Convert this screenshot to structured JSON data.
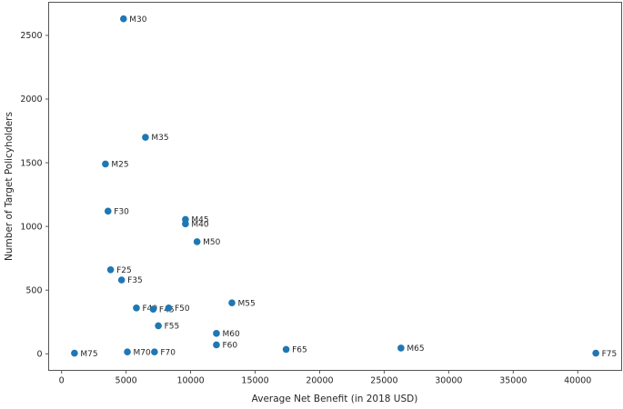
{
  "chart_data": {
    "type": "scatter",
    "title": "",
    "xlabel": "Average Net Benefit (in 2018 USD)",
    "ylabel": "Number of Target Policyholders",
    "xlim": [
      -1000,
      43400
    ],
    "ylim": [
      -130,
      2760
    ],
    "x_ticks": [
      0,
      5000,
      10000,
      15000,
      20000,
      25000,
      30000,
      35000,
      40000
    ],
    "y_ticks": [
      0,
      500,
      1000,
      1500,
      2000,
      2500
    ],
    "grid": false,
    "legend": null,
    "marker_color": "#1f77b4",
    "text_color": "#262626",
    "axis_color": "#555555",
    "points": [
      {
        "label": "M25",
        "x": 3400,
        "y": 1490
      },
      {
        "label": "M30",
        "x": 4800,
        "y": 2630
      },
      {
        "label": "M35",
        "x": 6500,
        "y": 1700
      },
      {
        "label": "M40",
        "x": 9600,
        "y": 1020
      },
      {
        "label": "M45",
        "x": 9600,
        "y": 1055
      },
      {
        "label": "M50",
        "x": 10500,
        "y": 880
      },
      {
        "label": "M55",
        "x": 13200,
        "y": 400
      },
      {
        "label": "M60",
        "x": 12000,
        "y": 160
      },
      {
        "label": "M65",
        "x": 26300,
        "y": 45
      },
      {
        "label": "M70",
        "x": 5100,
        "y": 15
      },
      {
        "label": "M75",
        "x": 1000,
        "y": 5
      },
      {
        "label": "F25",
        "x": 3800,
        "y": 660
      },
      {
        "label": "F30",
        "x": 3600,
        "y": 1120
      },
      {
        "label": "F35",
        "x": 4650,
        "y": 580
      },
      {
        "label": "F40",
        "x": 5800,
        "y": 360
      },
      {
        "label": "F45",
        "x": 7100,
        "y": 350
      },
      {
        "label": "F50",
        "x": 8300,
        "y": 360
      },
      {
        "label": "F55",
        "x": 7500,
        "y": 220
      },
      {
        "label": "F60",
        "x": 12000,
        "y": 70
      },
      {
        "label": "F65",
        "x": 17400,
        "y": 35
      },
      {
        "label": "F70",
        "x": 7200,
        "y": 15
      },
      {
        "label": "F75",
        "x": 41400,
        "y": 5
      }
    ]
  }
}
